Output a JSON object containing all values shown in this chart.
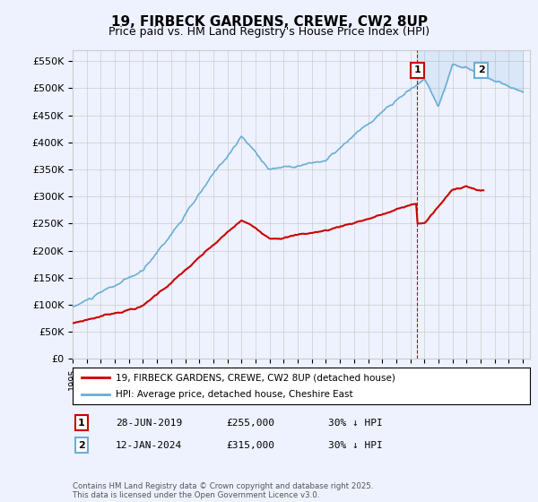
{
  "title": "19, FIRBECK GARDENS, CREWE, CW2 8UP",
  "subtitle": "Price paid vs. HM Land Registry's House Price Index (HPI)",
  "hpi_color": "#6baed6",
  "price_color": "#cc0000",
  "background_color": "#eef2ff",
  "ylim": [
    0,
    570000
  ],
  "yticks": [
    0,
    50000,
    100000,
    150000,
    200000,
    250000,
    300000,
    350000,
    400000,
    450000,
    500000,
    550000
  ],
  "ytick_labels": [
    "£0",
    "£50K",
    "£100K",
    "£150K",
    "£200K",
    "£250K",
    "£300K",
    "£350K",
    "£400K",
    "£450K",
    "£500K",
    "£550K"
  ],
  "xlim_start": 1995.0,
  "xlim_end": 2027.5,
  "xtick_years": [
    1995,
    1996,
    1997,
    1998,
    1999,
    2000,
    2001,
    2002,
    2003,
    2004,
    2005,
    2006,
    2007,
    2008,
    2009,
    2010,
    2011,
    2012,
    2013,
    2014,
    2015,
    2016,
    2017,
    2018,
    2019,
    2020,
    2021,
    2022,
    2023,
    2024,
    2025,
    2026,
    2027
  ],
  "marker1_x": 2019.49,
  "marker1_y": 255000,
  "marker2_x": 2024.04,
  "marker2_y": 315000,
  "dashed_line_x": 2019.49,
  "legend_line1": "19, FIRBECK GARDENS, CREWE, CW2 8UP (detached house)",
  "legend_line2": "HPI: Average price, detached house, Cheshire East",
  "table_row1": [
    "1",
    "28-JUN-2019",
    "£255,000",
    "30% ↓ HPI"
  ],
  "table_row2": [
    "2",
    "12-JAN-2024",
    "£315,000",
    "30% ↓ HPI"
  ],
  "footer": "Contains HM Land Registry data © Crown copyright and database right 2025.\nThis data is licensed under the Open Government Licence v3.0."
}
